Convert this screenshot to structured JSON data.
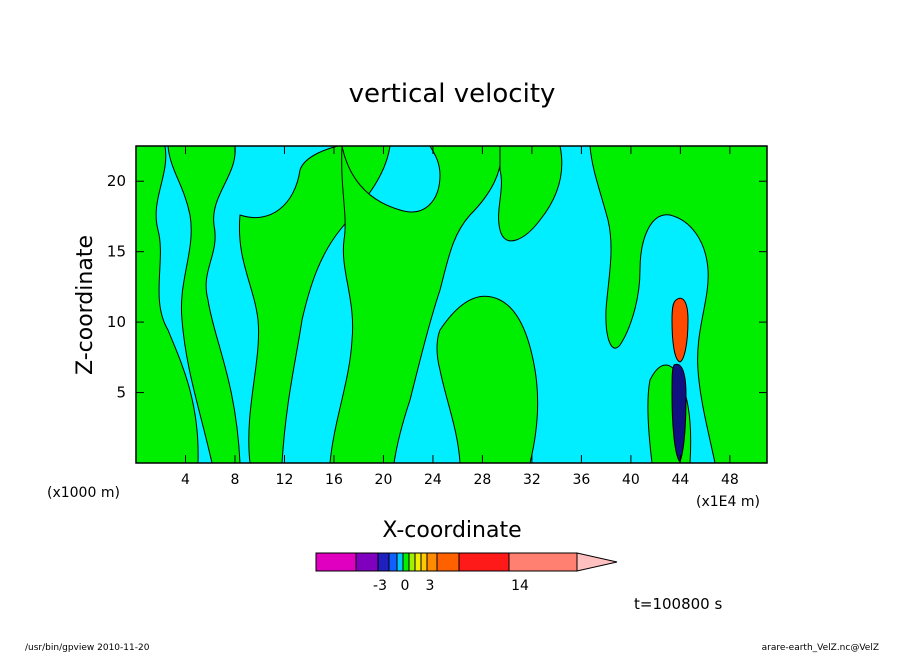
{
  "chart_data": {
    "type": "heatmap",
    "title": "vertical velocity",
    "xlabel": "X-coordinate",
    "ylabel": "Z-coordinate",
    "x_unit_left": "(x1000 m)",
    "x_unit_right": "(x1E4 m)",
    "x_ticks": [
      4,
      8,
      12,
      16,
      20,
      24,
      28,
      32,
      36,
      40,
      44,
      48
    ],
    "y_ticks": [
      5,
      10,
      15,
      20
    ],
    "xlim": [
      0,
      51
    ],
    "ylim": [
      0,
      22.5
    ],
    "time_label": "t=100800 s",
    "colorbar": {
      "colors": [
        "#e000c0",
        "#8000c0",
        "#2020c0",
        "#1060ff",
        "#00c8ff",
        "#00f000",
        "#a0f000",
        "#f0f000",
        "#ffc800",
        "#ff8c00",
        "#ff6000",
        "#ff1a1a",
        "#ff8070",
        "#ffc0c0"
      ],
      "labels": [
        {
          "text": "-3",
          "value": -3
        },
        {
          "text": "0",
          "value": 0
        },
        {
          "text": "3",
          "value": 3
        },
        {
          "text": "14",
          "value": 14
        }
      ]
    },
    "legend": "bottom-center",
    "grid": false
  },
  "footer": {
    "left": "/usr/bin/gpview  2010-11-20",
    "right": "arare-earth_VelZ.nc@VelZ"
  },
  "colors": {
    "negative": "#00eeff",
    "positive": "#00ee00",
    "strong_up": "#ff4a00",
    "strong_down": "#101080"
  }
}
